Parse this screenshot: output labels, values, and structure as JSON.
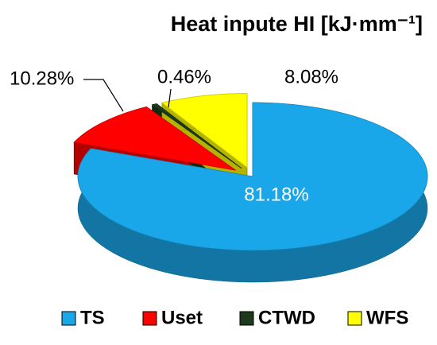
{
  "chart_data": {
    "type": "pie",
    "title": "Heat inpute HI [kJ·mm⁻¹]",
    "categories": [
      "TS",
      "Uset",
      "CTWD",
      "WFS"
    ],
    "values": [
      81.18,
      10.28,
      0.46,
      8.08
    ],
    "value_labels": [
      "81.18%",
      "10.28%",
      "0.46%",
      "8.08%"
    ],
    "colors": [
      "#1aa7ea",
      "#ff0000",
      "#1c3a1c",
      "#ffff00"
    ],
    "legend": "bottom"
  }
}
